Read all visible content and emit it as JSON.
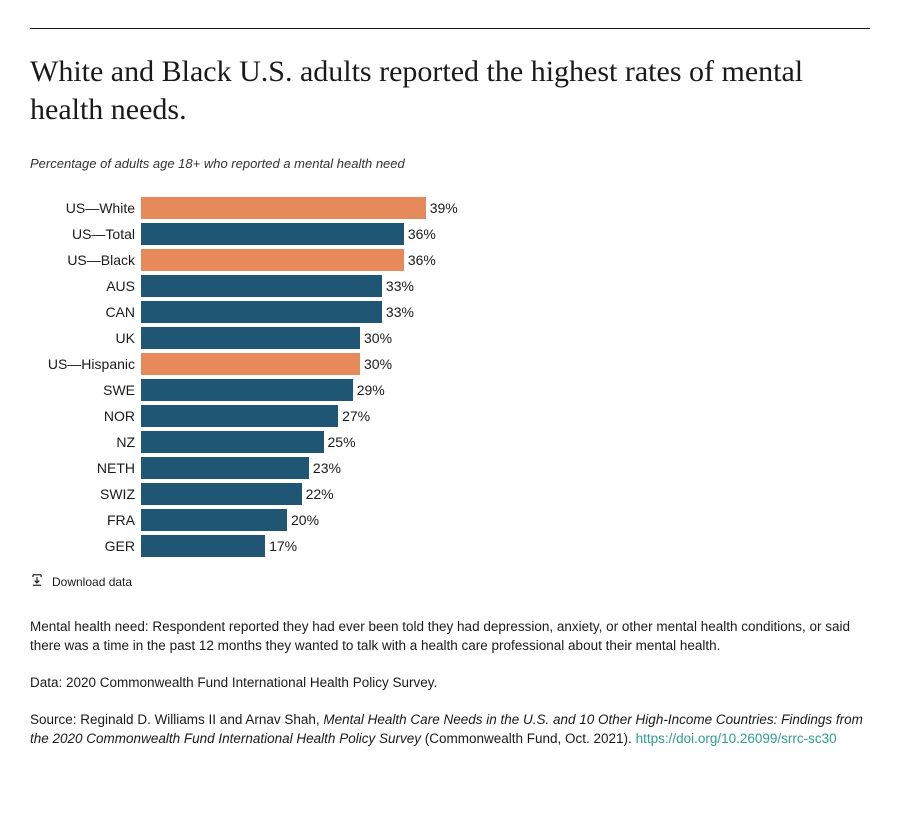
{
  "title": "White and Black U.S. adults reported the highest rates of mental health needs.",
  "subtitle": "Percentage of adults age 18+ who reported a mental health need",
  "chart": {
    "type": "bar-horizontal",
    "valueMax": 100,
    "barTrackWidthPx": 570,
    "widthScale": 7.3,
    "rowHeightPx": 26,
    "barHeightPx": 22,
    "colors": {
      "default": "#1e5673",
      "highlight": "#e68a5c",
      "background": "#ffffff",
      "text": "#1a1a1a"
    },
    "fontSizes": {
      "title": 30,
      "subtitle": 13,
      "label": 14,
      "value": 14,
      "notes": 13.5
    },
    "bars": [
      {
        "label": "US—White",
        "value": 39,
        "display": "39%",
        "highlight": true
      },
      {
        "label": "US—Total",
        "value": 36,
        "display": "36%",
        "highlight": false
      },
      {
        "label": "US—Black",
        "value": 36,
        "display": "36%",
        "highlight": true
      },
      {
        "label": "AUS",
        "value": 33,
        "display": "33%",
        "highlight": false
      },
      {
        "label": "CAN",
        "value": 33,
        "display": "33%",
        "highlight": false
      },
      {
        "label": "UK",
        "value": 30,
        "display": "30%",
        "highlight": false
      },
      {
        "label": "US—Hispanic",
        "value": 30,
        "display": "30%",
        "highlight": true
      },
      {
        "label": "SWE",
        "value": 29,
        "display": "29%",
        "highlight": false
      },
      {
        "label": "NOR",
        "value": 27,
        "display": "27%",
        "highlight": false
      },
      {
        "label": "NZ",
        "value": 25,
        "display": "25%",
        "highlight": false
      },
      {
        "label": "NETH",
        "value": 23,
        "display": "23%",
        "highlight": false
      },
      {
        "label": "SWIZ",
        "value": 22,
        "display": "22%",
        "highlight": false
      },
      {
        "label": "FRA",
        "value": 20,
        "display": "20%",
        "highlight": false
      },
      {
        "label": "GER",
        "value": 17,
        "display": "17%",
        "highlight": false
      }
    ]
  },
  "download": {
    "label": "Download data",
    "iconName": "download-icon"
  },
  "notes": {
    "definition": "Mental health need: Respondent reported they had ever been told they had depression, anxiety, or other mental health conditions, or said there was a time in the past 12 months they wanted to talk with a health care professional about their mental health.",
    "dataLine": "Data: 2020 Commonwealth Fund International Health Policy Survey."
  },
  "source": {
    "prefix": "Source: Reginald D. Williams II and Arnav Shah, ",
    "italic": "Mental Health Care Needs in the U.S. and 10 Other High-Income Countries: Findings from the 2020 Commonwealth Fund International Health Policy Survey",
    "suffix": " (Commonwealth Fund, Oct. 2021). ",
    "linkText": "https://doi.org/10.26099/srrc-sc30",
    "linkHref": "https://doi.org/10.26099/srrc-sc30",
    "linkColor": "#2e9e8f"
  }
}
